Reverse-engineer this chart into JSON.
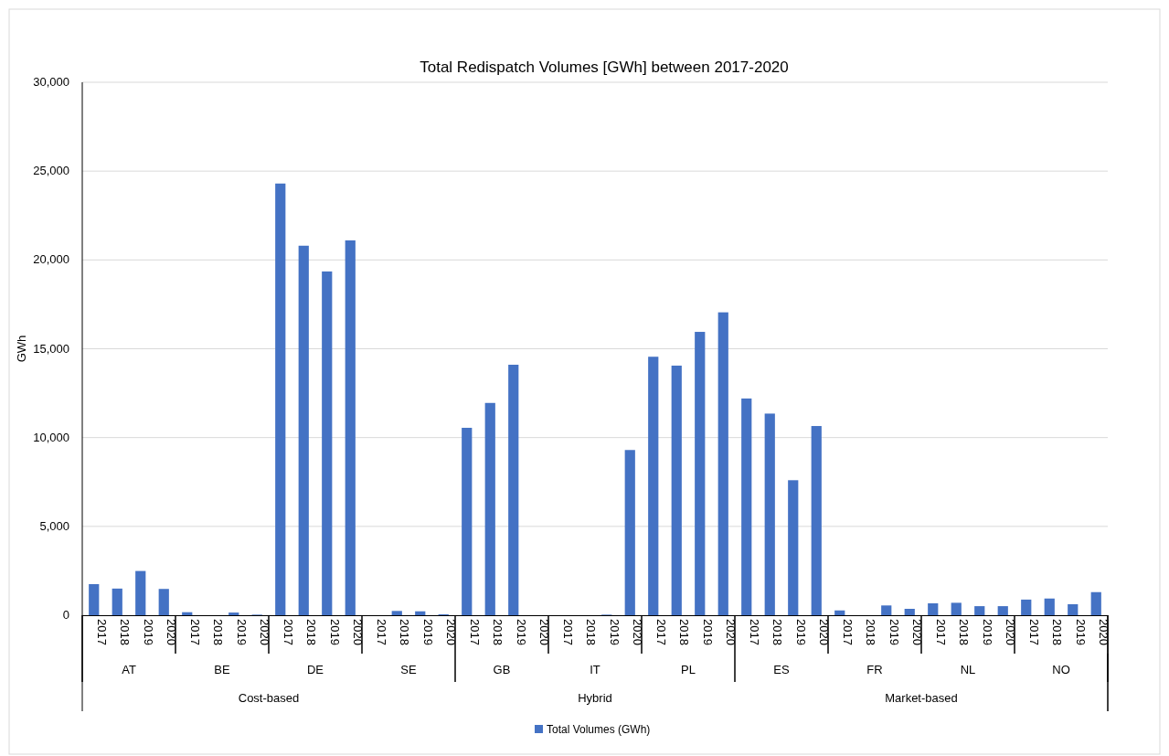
{
  "chart_data": {
    "type": "bar",
    "title": "Total Redispatch Volumes [GWh] between 2017-2020",
    "ylabel": "GWh",
    "categories": [
      "2017",
      "2018",
      "2019",
      "2020",
      "2017",
      "2018",
      "2019",
      "2020",
      "2017",
      "2018",
      "2019",
      "2020",
      "2017",
      "2018",
      "2019",
      "2020",
      "2017",
      "2018",
      "2019",
      "2020",
      "2017",
      "2018",
      "2019",
      "2020",
      "2017",
      "2018",
      "2019",
      "2020",
      "2017",
      "2018",
      "2019",
      "2020",
      "2017",
      "2018",
      "2019",
      "2020",
      "2017",
      "2018",
      "2019",
      "2020",
      "2017",
      "2018",
      "2019",
      "2020"
    ],
    "annotations": [
      "AT",
      "BE",
      "DE",
      "SE",
      "GB",
      "IT",
      "PL",
      "ES",
      "FR",
      "NL",
      "NO",
      "Cost-based",
      "Hybrid",
      "Market-based"
    ],
    "series": [
      {
        "name": "Total Volumes (GWh)",
        "color": "#4472c4",
        "values": [
          1750,
          1500,
          2490,
          1480,
          170,
          0,
          150,
          30,
          24300,
          20800,
          19350,
          21100,
          0,
          240,
          220,
          50,
          10550,
          11950,
          14100,
          0,
          0,
          0,
          30,
          9300,
          14550,
          14050,
          15950,
          17050,
          12200,
          11350,
          7600,
          10650,
          270,
          0,
          550,
          360,
          670,
          700,
          510,
          510,
          880,
          940,
          620,
          1300
        ]
      }
    ],
    "ylim": [
      0,
      30000
    ],
    "yticks": [
      {
        "value": 0,
        "label": "0"
      },
      {
        "value": 5000,
        "label": "5,000"
      },
      {
        "value": 10000,
        "label": "10,000"
      },
      {
        "value": 15000,
        "label": "15,000"
      },
      {
        "value": 20000,
        "label": "20,000"
      },
      {
        "value": 25000,
        "label": "25,000"
      },
      {
        "value": 30000,
        "label": "30,000"
      }
    ],
    "grid": "y",
    "legend": "bottom"
  }
}
